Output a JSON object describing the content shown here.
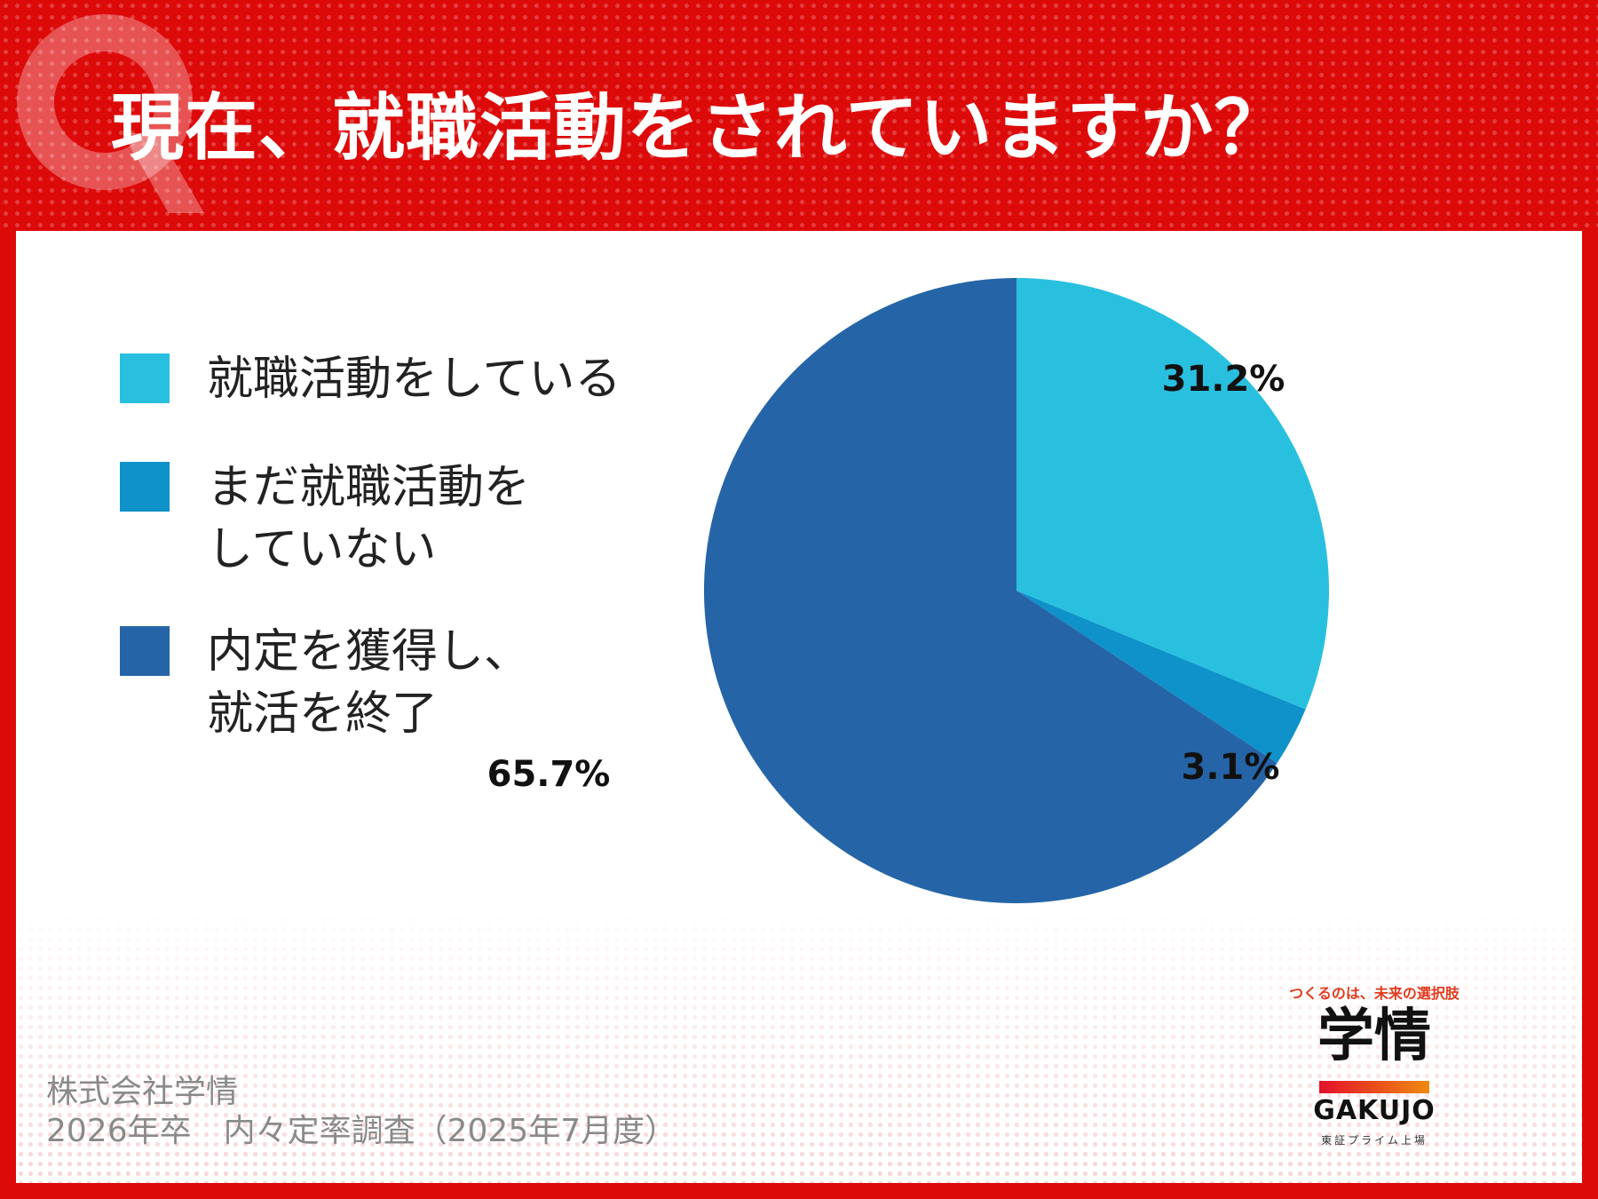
{
  "header": {
    "title": "現在、就職活動をされていますか？",
    "icon": "q-icon"
  },
  "chart_data": {
    "type": "pie",
    "title": "現在、就職活動をされていますか？",
    "categories": [
      "就職活動をしている",
      "まだ就職活動をしていない",
      "内定を獲得し、就活を終了"
    ],
    "values": [
      31.2,
      3.1,
      65.7
    ],
    "colors": [
      "#29c0e0",
      "#0e92c9",
      "#2565a7"
    ],
    "value_labels": [
      "31.2%",
      "3.1%",
      "65.7%"
    ],
    "legend_position": "left"
  },
  "legend": {
    "items": [
      {
        "label": "就職活動をしている",
        "color": "#29c0e0"
      },
      {
        "label": "まだ就職活動を\nしていない",
        "color": "#0e92c9"
      },
      {
        "label": "内定を獲得し、\n就活を終了",
        "color": "#2565a7"
      }
    ]
  },
  "source": {
    "line1": "株式会社学情",
    "line2": "2026年卒　内々定率調査（2025年7月度）"
  },
  "logo": {
    "tagline": "つくるのは、未来の選択肢",
    "mark": "学情",
    "name": "GAKUJO",
    "sub": "東証プライム上場"
  },
  "colors": {
    "header_bg": "#dd0a0a",
    "panel_bg": "#ffffff"
  }
}
